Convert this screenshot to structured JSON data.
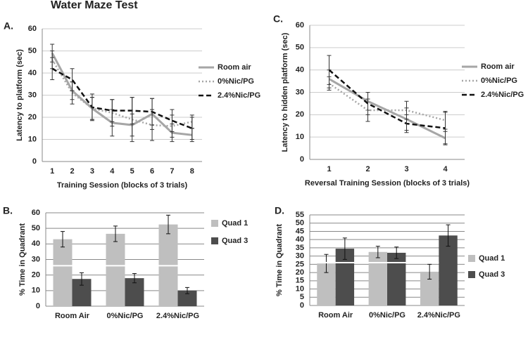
{
  "title": "Water Maze Test",
  "chart_data": [
    {
      "type": "line",
      "panel": "A.",
      "ylabel": "Latency to platform (sec)",
      "xlabel": "Training Session (blocks of 3 trials)",
      "categories": [
        "1",
        "2",
        "3",
        "4",
        "5",
        "6",
        "7",
        "8"
      ],
      "ylim": [
        0,
        60
      ],
      "yticks": [
        0,
        10,
        20,
        30,
        40,
        50,
        60
      ],
      "grid": true,
      "legend": "right",
      "series": [
        {
          "name": "Room air",
          "color": "#a6a6a6",
          "dash": "solid",
          "values": [
            49,
            32,
            24,
            17.5,
            16.5,
            21.5,
            13,
            12
          ],
          "errors": [
            4,
            4,
            5,
            6,
            5,
            7,
            4,
            3
          ]
        },
        {
          "name": "0%Nic/PG",
          "color": "#a6a6a6",
          "dash": "dotted",
          "values": [
            46,
            31,
            24,
            22,
            19,
            16.5,
            16,
            18
          ],
          "errors": [
            4,
            5,
            5,
            6,
            10,
            7,
            5,
            3
          ]
        },
        {
          "name": "2.4%Nic/PG",
          "color": "#111111",
          "dash": "dashed",
          "values": [
            42,
            37,
            24.5,
            23,
            23,
            22.5,
            18.5,
            15
          ],
          "errors": [
            5,
            5,
            6,
            5,
            6,
            6,
            5,
            5
          ]
        }
      ]
    },
    {
      "type": "line",
      "panel": "C.",
      "ylabel": "Latency to hidden platform (sec)",
      "xlabel": "Reversal Training Session (blocks of 3 trials)",
      "categories": [
        "1",
        "2",
        "3",
        "4"
      ],
      "ylim": [
        0,
        60
      ],
      "yticks": [
        0,
        10,
        20,
        30,
        40,
        50,
        60
      ],
      "grid": true,
      "legend": "right",
      "series": [
        {
          "name": "Room air",
          "color": "#a6a6a6",
          "dash": "solid",
          "values": [
            36,
            26,
            18,
            9.5
          ],
          "errors": [
            4,
            4,
            5,
            3
          ]
        },
        {
          "name": "0%Nic/PG",
          "color": "#a6a6a6",
          "dash": "dotted",
          "values": [
            34,
            22,
            22,
            17.5
          ],
          "errors": [
            3,
            5,
            4,
            4
          ]
        },
        {
          "name": "2.4%Nic/PG",
          "color": "#111111",
          "dash": "dashed",
          "values": [
            40,
            25,
            16,
            14
          ],
          "errors": [
            6.5,
            5,
            4,
            7
          ]
        }
      ]
    },
    {
      "type": "bar",
      "panel": "B.",
      "ylabel": "% Time in Quadrant",
      "categories": [
        "Room Air",
        "0%Nic/PG",
        "2.4%Nic/PG"
      ],
      "ylim": [
        0,
        60
      ],
      "yticks": [
        0,
        10,
        20,
        30,
        40,
        50,
        60
      ],
      "grid": true,
      "legend": "right",
      "hline": 26,
      "hline_color": "#ffffff",
      "series": [
        {
          "name": "Quad 1",
          "color": "#bfbfbf",
          "values": [
            43,
            46.5,
            52.5
          ],
          "errors": [
            5,
            5,
            6
          ]
        },
        {
          "name": "Quad 3",
          "color": "#4d4d4d",
          "values": [
            17.5,
            18,
            10
          ],
          "errors": [
            4,
            3,
            2
          ]
        }
      ]
    },
    {
      "type": "bar",
      "panel": "D.",
      "ylabel": "% Time in Quadrant",
      "categories": [
        "Room Air",
        "0%Nic/PG",
        "2.4%Nic/PG"
      ],
      "ylim": [
        0,
        55
      ],
      "yticks": [
        0,
        5,
        10,
        15,
        20,
        25,
        30,
        35,
        40,
        45,
        50,
        55
      ],
      "grid": true,
      "legend": "right",
      "hline": 26,
      "hline_color": "#ffffff",
      "series": [
        {
          "name": "Quad 1",
          "color": "#bfbfbf",
          "values": [
            25.5,
            32.5,
            20.5
          ],
          "errors": [
            5.5,
            3.5,
            4.5
          ]
        },
        {
          "name": "Quad 3",
          "color": "#4d4d4d",
          "values": [
            34.5,
            32,
            42.5
          ],
          "errors": [
            6.5,
            3.5,
            6.5
          ]
        }
      ]
    }
  ]
}
